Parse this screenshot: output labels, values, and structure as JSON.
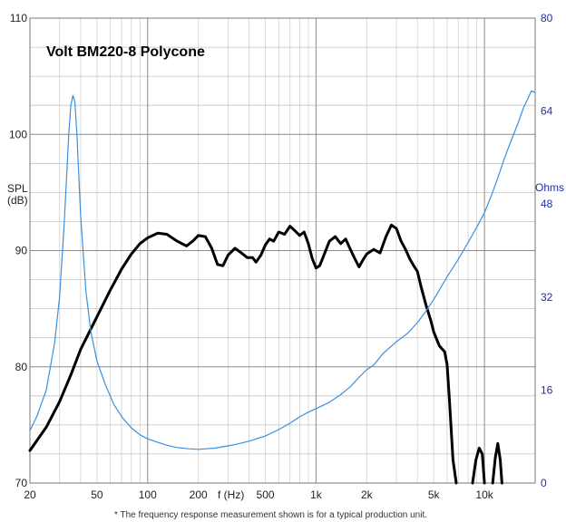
{
  "chart_data": {
    "type": "line",
    "title": "Volt BM220-8 Polycone",
    "xlabel": "f (Hz)",
    "ylabel": "SPL\n(dB)",
    "y2label": "Ohms",
    "xscale": "log",
    "xlim": [
      20,
      20000
    ],
    "ylim": [
      70,
      110
    ],
    "y2lim": [
      0,
      80
    ],
    "grid": true,
    "footnote": "* The frequency response measurement shown is for a typical production unit.",
    "x_tick_labels": [
      {
        "value": 20,
        "label": "20"
      },
      {
        "value": 50,
        "label": "50"
      },
      {
        "value": 100,
        "label": "100"
      },
      {
        "value": 200,
        "label": "200"
      },
      {
        "value": 500,
        "label": "500"
      },
      {
        "value": 1000,
        "label": "1k"
      },
      {
        "value": 2000,
        "label": "2k"
      },
      {
        "value": 5000,
        "label": "5k"
      },
      {
        "value": 10000,
        "label": "10k"
      }
    ],
    "y_tick_labels": [
      {
        "value": 70,
        "label": "70"
      },
      {
        "value": 80,
        "label": "80"
      },
      {
        "value": 90,
        "label": "90"
      },
      {
        "value": 100,
        "label": "100"
      },
      {
        "value": 110,
        "label": "110"
      }
    ],
    "y2_tick_labels": [
      {
        "value": 0,
        "label": "0"
      },
      {
        "value": 16,
        "label": "16"
      },
      {
        "value": 32,
        "label": "32"
      },
      {
        "value": 48,
        "label": "48"
      },
      {
        "value": 64,
        "label": "64"
      },
      {
        "value": 80,
        "label": "80"
      }
    ],
    "series": [
      {
        "axis": "left",
        "color": "#000000",
        "points": [
          [
            20,
            72.8
          ],
          [
            25,
            74.8
          ],
          [
            30,
            77.0
          ],
          [
            35,
            79.3
          ],
          [
            40,
            81.5
          ],
          [
            50,
            84.3
          ],
          [
            60,
            86.6
          ],
          [
            70,
            88.4
          ],
          [
            80,
            89.7
          ],
          [
            90,
            90.6
          ],
          [
            100,
            91.1
          ],
          [
            115,
            91.5
          ],
          [
            130,
            91.4
          ],
          [
            150,
            90.8
          ],
          [
            170,
            90.4
          ],
          [
            185,
            90.8
          ],
          [
            200,
            91.3
          ],
          [
            220,
            91.2
          ],
          [
            240,
            90.2
          ],
          [
            260,
            88.8
          ],
          [
            280,
            88.7
          ],
          [
            300,
            89.6
          ],
          [
            330,
            90.2
          ],
          [
            360,
            89.8
          ],
          [
            390,
            89.4
          ],
          [
            420,
            89.4
          ],
          [
            440,
            89.0
          ],
          [
            470,
            89.6
          ],
          [
            500,
            90.5
          ],
          [
            530,
            91.0
          ],
          [
            560,
            90.8
          ],
          [
            600,
            91.6
          ],
          [
            650,
            91.4
          ],
          [
            700,
            92.1
          ],
          [
            750,
            91.7
          ],
          [
            800,
            91.3
          ],
          [
            850,
            91.6
          ],
          [
            900,
            90.6
          ],
          [
            950,
            89.3
          ],
          [
            1000,
            88.5
          ],
          [
            1050,
            88.7
          ],
          [
            1100,
            89.4
          ],
          [
            1200,
            90.8
          ],
          [
            1300,
            91.2
          ],
          [
            1400,
            90.6
          ],
          [
            1500,
            91.0
          ],
          [
            1600,
            90.1
          ],
          [
            1700,
            89.3
          ],
          [
            1800,
            88.6
          ],
          [
            1900,
            89.2
          ],
          [
            2000,
            89.7
          ],
          [
            2200,
            90.1
          ],
          [
            2400,
            89.8
          ],
          [
            2600,
            91.2
          ],
          [
            2800,
            92.2
          ],
          [
            3000,
            91.9
          ],
          [
            3200,
            90.8
          ],
          [
            3400,
            90.1
          ],
          [
            3600,
            89.3
          ],
          [
            3800,
            88.7
          ],
          [
            4000,
            88.2
          ],
          [
            4200,
            86.9
          ],
          [
            4500,
            85.3
          ],
          [
            4800,
            84.0
          ],
          [
            5000,
            83.0
          ],
          [
            5400,
            81.8
          ],
          [
            5800,
            81.3
          ],
          [
            6000,
            80.2
          ],
          [
            6200,
            77.0
          ],
          [
            6500,
            72.0
          ],
          [
            6800,
            70.0
          ]
        ]
      },
      {
        "axis": "left",
        "color": "#000000",
        "points": [
          [
            8500,
            70.0
          ],
          [
            8900,
            72.0
          ],
          [
            9300,
            73.0
          ],
          [
            9700,
            72.5
          ],
          [
            10000,
            70.0
          ]
        ]
      },
      {
        "axis": "left",
        "color": "#000000",
        "points": [
          [
            11200,
            70.0
          ],
          [
            11600,
            72.2
          ],
          [
            12000,
            73.4
          ],
          [
            12400,
            72.0
          ],
          [
            12700,
            70.0
          ]
        ]
      },
      {
        "axis": "right",
        "color": "#3a90dd",
        "points": [
          [
            20,
            9
          ],
          [
            22,
            11.5
          ],
          [
            25,
            16
          ],
          [
            28,
            24
          ],
          [
            30,
            32
          ],
          [
            32,
            45
          ],
          [
            34,
            60
          ],
          [
            35,
            65
          ],
          [
            36,
            66.7
          ],
          [
            37,
            65.5
          ],
          [
            38,
            60
          ],
          [
            40,
            46
          ],
          [
            43,
            33
          ],
          [
            46,
            26
          ],
          [
            50,
            21
          ],
          [
            56,
            17
          ],
          [
            63,
            13.5
          ],
          [
            71,
            11.2
          ],
          [
            80,
            9.5
          ],
          [
            90,
            8.3
          ],
          [
            100,
            7.6
          ],
          [
            115,
            7.0
          ],
          [
            130,
            6.5
          ],
          [
            150,
            6.1
          ],
          [
            175,
            5.9
          ],
          [
            200,
            5.8
          ],
          [
            250,
            6.0
          ],
          [
            300,
            6.4
          ],
          [
            350,
            6.8
          ],
          [
            400,
            7.2
          ],
          [
            500,
            8.1
          ],
          [
            600,
            9.2
          ],
          [
            700,
            10.3
          ],
          [
            800,
            11.4
          ],
          [
            900,
            12.2
          ],
          [
            1000,
            12.8
          ],
          [
            1200,
            13.9
          ],
          [
            1400,
            15.2
          ],
          [
            1600,
            16.6
          ],
          [
            1800,
            18.2
          ],
          [
            2000,
            19.5
          ],
          [
            2200,
            20.3
          ],
          [
            2500,
            22.3
          ],
          [
            3000,
            24.3
          ],
          [
            3500,
            25.8
          ],
          [
            4000,
            27.6
          ],
          [
            4500,
            29.6
          ],
          [
            5000,
            31.6
          ],
          [
            6000,
            35.5
          ],
          [
            7000,
            38.5
          ],
          [
            8000,
            41.4
          ],
          [
            9000,
            44.0
          ],
          [
            10000,
            46.5
          ],
          [
            11000,
            49.5
          ],
          [
            12000,
            52.5
          ],
          [
            13000,
            55.5
          ],
          [
            14000,
            58.0
          ],
          [
            15000,
            60.2
          ],
          [
            16000,
            62.3
          ],
          [
            17000,
            64.5
          ],
          [
            18000,
            66.0
          ],
          [
            19000,
            67.5
          ],
          [
            20000,
            67.2
          ]
        ]
      }
    ]
  }
}
